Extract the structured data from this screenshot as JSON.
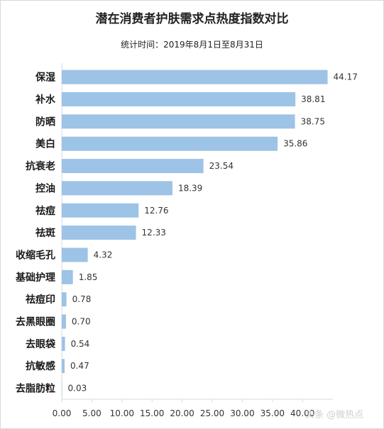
{
  "title": "潜在消费者护肤需求点热度指数对比",
  "subtitle": "统计时间：2019年8月1日至8月31日",
  "watermark": "头条 @微热点",
  "colors": {
    "bar": "#9dc3e6",
    "axis": "#d9d9d9"
  },
  "chart_data": {
    "type": "bar",
    "orientation": "horizontal",
    "title": "潜在消费者护肤需求点热度指数对比",
    "subtitle": "统计时间：2019年8月1日至8月31日",
    "categories": [
      "保湿",
      "补水",
      "防晒",
      "美白",
      "抗衰老",
      "控油",
      "祛痘",
      "祛斑",
      "收缩毛孔",
      "基础护理",
      "祛痘印",
      "去黑眼圈",
      "去眼袋",
      "抗敏感",
      "去脂肪粒"
    ],
    "values": [
      44.17,
      38.81,
      38.75,
      35.86,
      23.54,
      18.39,
      12.76,
      12.33,
      4.32,
      1.85,
      0.78,
      0.7,
      0.54,
      0.47,
      0.03
    ],
    "value_labels": [
      "44.17",
      "38.81",
      "38.75",
      "35.86",
      "23.54",
      "18.39",
      "12.76",
      "12.33",
      "4.32",
      "1.85",
      "0.78",
      "0.70",
      "0.54",
      "0.47",
      "0.03"
    ],
    "xticks": [
      "0.00",
      "5.00",
      "10.00",
      "15.00",
      "20.00",
      "25.00",
      "30.00",
      "35.00",
      "40.00"
    ],
    "xlim": [
      0,
      45
    ],
    "grid": false,
    "legend": "none"
  }
}
